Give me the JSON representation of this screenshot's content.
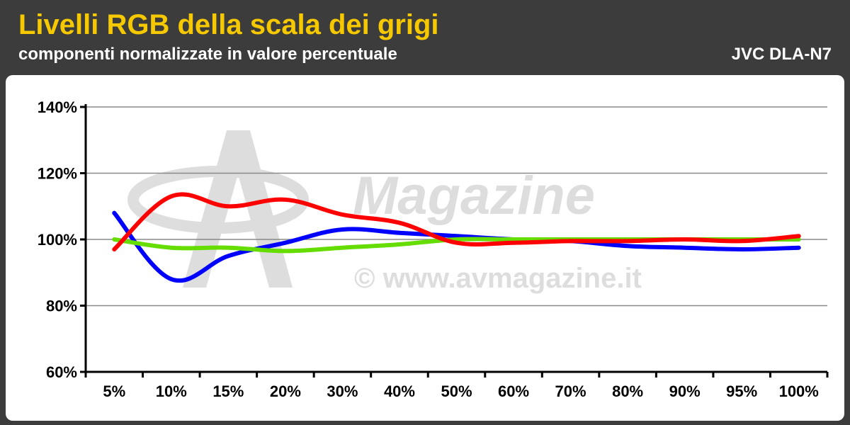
{
  "header": {
    "title": "Livelli RGB della scala dei grigi",
    "subtitle": "componenti normalizzate in valore percentuale",
    "model": "JVC DLA-N7"
  },
  "watermark": {
    "logo_text": "Magazine",
    "copyright": "© www.avmagazine.it"
  },
  "colors": {
    "title": "#f5c800",
    "header_bg": "#3c3c3c",
    "red": "#ff0000",
    "green": "#66dd00",
    "blue": "#0000ff"
  },
  "chart_data": {
    "type": "line",
    "categories": [
      "5%",
      "10%",
      "15%",
      "20%",
      "30%",
      "40%",
      "50%",
      "60%",
      "70%",
      "80%",
      "90%",
      "95%",
      "100%"
    ],
    "ylim": [
      60,
      140
    ],
    "yticks": [
      60,
      80,
      100,
      120,
      140
    ],
    "ytick_labels": [
      "60%",
      "80%",
      "100%",
      "120%",
      "140%"
    ],
    "grid": true,
    "series": [
      {
        "color": "#0000ff",
        "values": [
          108,
          88,
          95,
          99,
          103,
          102,
          101,
          100,
          99.5,
          98,
          97.5,
          97,
          97.5
        ]
      },
      {
        "color": "#66dd00",
        "values": [
          100,
          97.5,
          97.5,
          96.5,
          97.5,
          98.5,
          100,
          100,
          100,
          100,
          100,
          100,
          100
        ]
      },
      {
        "color": "#ff0000",
        "values": [
          97,
          113,
          110,
          112,
          107.5,
          105,
          99,
          99,
          99.5,
          99.5,
          100,
          99.5,
          101
        ]
      }
    ]
  }
}
